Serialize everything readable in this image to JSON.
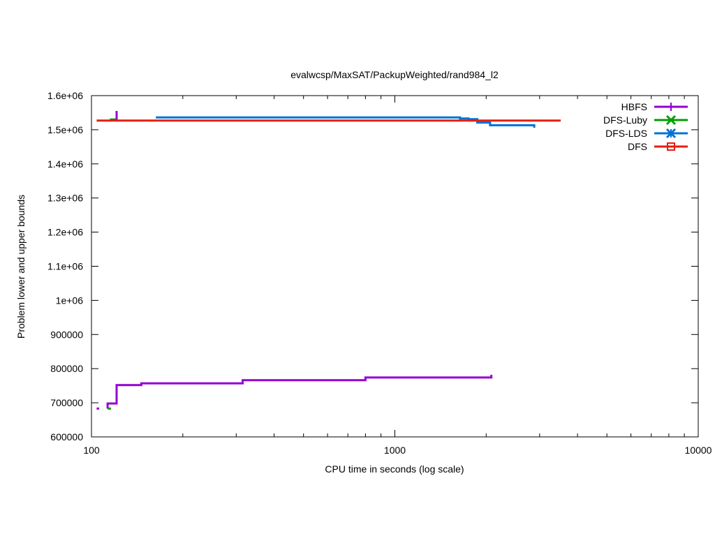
{
  "chart_data": {
    "type": "line",
    "title": "evalwcsp/MaxSAT/PackupWeighted/rand984_l2",
    "xlabel": "CPU time in seconds (log scale)",
    "ylabel": "Problem lower and upper bounds",
    "x_scale": "log",
    "xlim": [
      100,
      10000
    ],
    "ylim": [
      600000,
      1600000
    ],
    "grid": false,
    "legend_position": "top-right",
    "x_ticks": [
      {
        "value": 100,
        "label": "100"
      },
      {
        "value": 1000,
        "label": "1000"
      },
      {
        "value": 10000,
        "label": "10000"
      }
    ],
    "y_ticks": [
      {
        "value": 600000,
        "label": "600000"
      },
      {
        "value": 700000,
        "label": "700000"
      },
      {
        "value": 800000,
        "label": "800000"
      },
      {
        "value": 900000,
        "label": "900000"
      },
      {
        "value": 1000000,
        "label": "1e+06"
      },
      {
        "value": 1100000,
        "label": "1.1e+06"
      },
      {
        "value": 1200000,
        "label": "1.2e+06"
      },
      {
        "value": 1300000,
        "label": "1.3e+06"
      },
      {
        "value": 1400000,
        "label": "1.4e+06"
      },
      {
        "value": 1500000,
        "label": "1.5e+06"
      },
      {
        "value": 1600000,
        "label": "1.6e+06"
      }
    ],
    "series": [
      {
        "name": "HBFS",
        "color": "#9400d3",
        "marker": "plus",
        "segments": [
          [
            [
              104,
              683000
            ],
            [
              106,
              683000
            ]
          ],
          [
            [
              113,
              683000
            ],
            [
              113,
              698000
            ],
            [
              121,
              698000
            ],
            [
              121,
              752000
            ],
            [
              146,
              752000
            ],
            [
              146,
              757000
            ],
            [
              315,
              757000
            ],
            [
              315,
              766000
            ],
            [
              800,
              766000
            ],
            [
              800,
              774000
            ],
            [
              2080,
              774000
            ],
            [
              2080,
              782000
            ]
          ],
          [
            [
              121,
              1527000
            ],
            [
              121,
              1555000
            ]
          ]
        ]
      },
      {
        "name": "DFS-Luby",
        "color": "#009e00",
        "marker": "cross",
        "segments": [
          [
            [
              113,
              683000
            ],
            [
              116,
              683000
            ]
          ],
          [
            [
              115,
              1530000
            ],
            [
              120,
              1530000
            ]
          ]
        ]
      },
      {
        "name": "DFS-LDS",
        "color": "#0072d6",
        "marker": "star",
        "segments": [
          [
            [
              163,
              1536000
            ],
            [
              1640,
              1536000
            ],
            [
              1640,
              1533000
            ],
            [
              1750,
              1533000
            ],
            [
              1750,
              1531000
            ],
            [
              1870,
              1531000
            ],
            [
              1870,
              1521000
            ],
            [
              2060,
              1521000
            ],
            [
              2060,
              1513000
            ],
            [
              2880,
              1513000
            ],
            [
              2880,
              1506000
            ]
          ]
        ]
      },
      {
        "name": "DFS",
        "color": "#e51e10",
        "marker": "square",
        "segments": [
          [
            [
              104,
              1527000
            ],
            [
              3520,
              1527000
            ]
          ]
        ]
      }
    ]
  }
}
